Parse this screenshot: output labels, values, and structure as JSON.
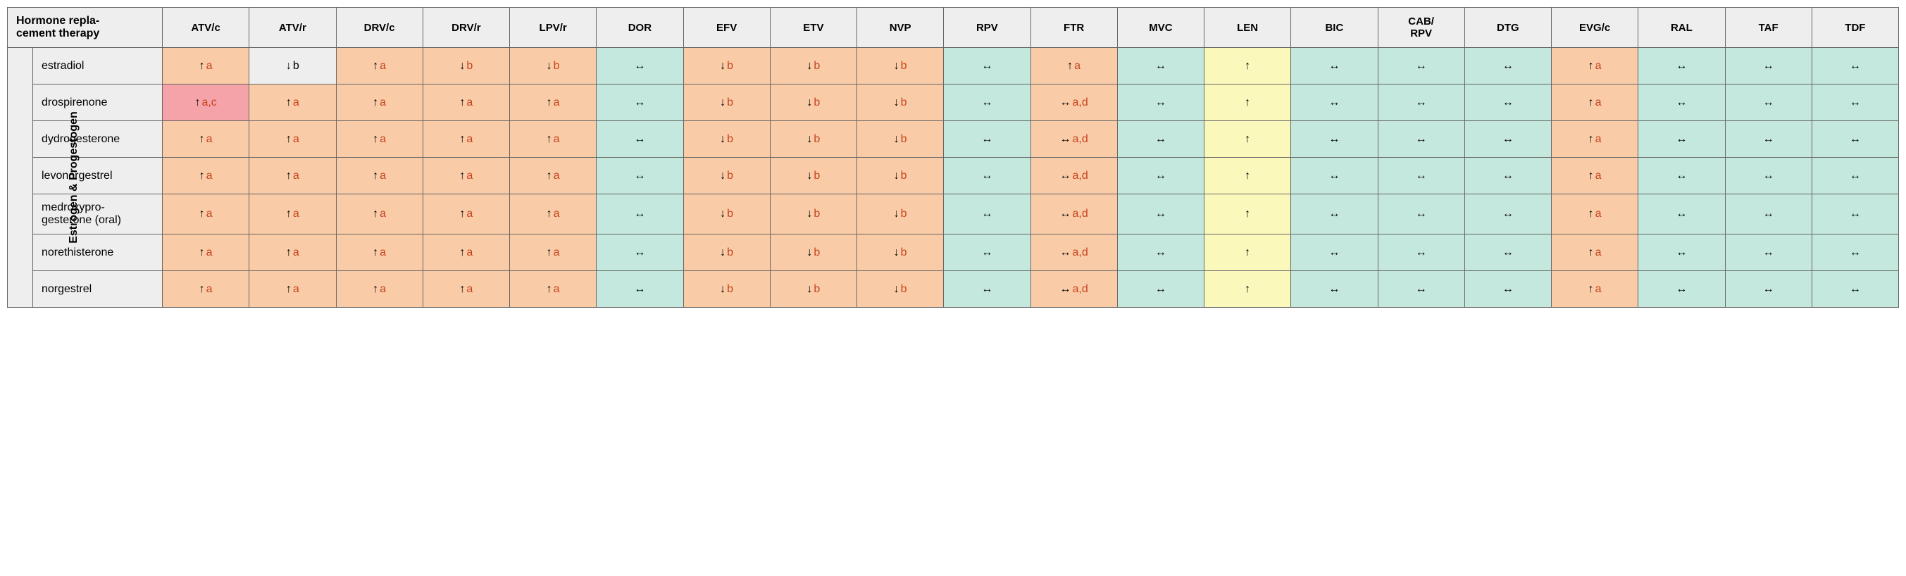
{
  "title": "Hormone repla-\ncement therapy",
  "group_label": "Estrogen & Progestogen",
  "colors": {
    "header_bg": "#eeeeee",
    "green": "#c4e8dd",
    "orange": "#f9cba6",
    "yellow": "#fbf8bb",
    "red": "#f5a3a8",
    "note_text": "#c7431f",
    "note_black": "#000000",
    "border": "#666666"
  },
  "columns": [
    "ATV/c",
    "ATV/r",
    "DRV/c",
    "DRV/r",
    "LPV/r",
    "DOR",
    "EFV",
    "ETV",
    "NVP",
    "RPV",
    "FTR",
    "MVC",
    "LEN",
    "BIC",
    "CAB/\nRPV",
    "DTG",
    "EVG/c",
    "RAL",
    "TAF",
    "TDF"
  ],
  "rows": [
    "estradiol",
    "drospirenone",
    "dydrogesterone",
    "levonorgestrel",
    "medroxypro-\ngesterone (oral)",
    "norethisterone",
    "norgestrel"
  ],
  "cells": [
    [
      {
        "bg": "orange",
        "arrow": "↑",
        "note": "a",
        "nc": "red"
      },
      {
        "bg": "header",
        "arrow": "↓",
        "note": "b",
        "nc": "black"
      },
      {
        "bg": "orange",
        "arrow": "↑",
        "note": "a",
        "nc": "red"
      },
      {
        "bg": "orange",
        "arrow": "↓",
        "note": "b",
        "nc": "red"
      },
      {
        "bg": "orange",
        "arrow": "↓",
        "note": "b",
        "nc": "red"
      },
      {
        "bg": "green",
        "arrow": "↔"
      },
      {
        "bg": "orange",
        "arrow": "↓",
        "note": "b",
        "nc": "red"
      },
      {
        "bg": "orange",
        "arrow": "↓",
        "note": "b",
        "nc": "red"
      },
      {
        "bg": "orange",
        "arrow": "↓",
        "note": "b",
        "nc": "red"
      },
      {
        "bg": "green",
        "arrow": "↔"
      },
      {
        "bg": "orange",
        "arrow": "↑",
        "note": "a",
        "nc": "red"
      },
      {
        "bg": "green",
        "arrow": "↔"
      },
      {
        "bg": "yellow",
        "arrow": "↑"
      },
      {
        "bg": "green",
        "arrow": "↔"
      },
      {
        "bg": "green",
        "arrow": "↔"
      },
      {
        "bg": "green",
        "arrow": "↔"
      },
      {
        "bg": "orange",
        "arrow": "↑",
        "note": "a",
        "nc": "red"
      },
      {
        "bg": "green",
        "arrow": "↔"
      },
      {
        "bg": "green",
        "arrow": "↔"
      },
      {
        "bg": "green",
        "arrow": "↔"
      }
    ],
    [
      {
        "bg": "red",
        "arrow": "↑",
        "note": "a,c",
        "nc": "red"
      },
      {
        "bg": "orange",
        "arrow": "↑",
        "note": "a",
        "nc": "red"
      },
      {
        "bg": "orange",
        "arrow": "↑",
        "note": "a",
        "nc": "red"
      },
      {
        "bg": "orange",
        "arrow": "↑",
        "note": "a",
        "nc": "red"
      },
      {
        "bg": "orange",
        "arrow": "↑",
        "note": "a",
        "nc": "red"
      },
      {
        "bg": "green",
        "arrow": "↔"
      },
      {
        "bg": "orange",
        "arrow": "↓",
        "note": "b",
        "nc": "red"
      },
      {
        "bg": "orange",
        "arrow": "↓",
        "note": "b",
        "nc": "red"
      },
      {
        "bg": "orange",
        "arrow": "↓",
        "note": "b",
        "nc": "red"
      },
      {
        "bg": "green",
        "arrow": "↔"
      },
      {
        "bg": "orange",
        "arrow": "↔",
        "note": "a,d",
        "nc": "red"
      },
      {
        "bg": "green",
        "arrow": "↔"
      },
      {
        "bg": "yellow",
        "arrow": "↑"
      },
      {
        "bg": "green",
        "arrow": "↔"
      },
      {
        "bg": "green",
        "arrow": "↔"
      },
      {
        "bg": "green",
        "arrow": "↔"
      },
      {
        "bg": "orange",
        "arrow": "↑",
        "note": "a",
        "nc": "red"
      },
      {
        "bg": "green",
        "arrow": "↔"
      },
      {
        "bg": "green",
        "arrow": "↔"
      },
      {
        "bg": "green",
        "arrow": "↔"
      }
    ],
    [
      {
        "bg": "orange",
        "arrow": "↑",
        "note": "a",
        "nc": "red"
      },
      {
        "bg": "orange",
        "arrow": "↑",
        "note": "a",
        "nc": "red"
      },
      {
        "bg": "orange",
        "arrow": "↑",
        "note": "a",
        "nc": "red"
      },
      {
        "bg": "orange",
        "arrow": "↑",
        "note": "a",
        "nc": "red"
      },
      {
        "bg": "orange",
        "arrow": "↑",
        "note": "a",
        "nc": "red"
      },
      {
        "bg": "green",
        "arrow": "↔"
      },
      {
        "bg": "orange",
        "arrow": "↓",
        "note": "b",
        "nc": "red"
      },
      {
        "bg": "orange",
        "arrow": "↓",
        "note": "b",
        "nc": "red"
      },
      {
        "bg": "orange",
        "arrow": "↓",
        "note": "b",
        "nc": "red"
      },
      {
        "bg": "green",
        "arrow": "↔"
      },
      {
        "bg": "orange",
        "arrow": "↔",
        "note": "a,d",
        "nc": "red"
      },
      {
        "bg": "green",
        "arrow": "↔"
      },
      {
        "bg": "yellow",
        "arrow": "↑"
      },
      {
        "bg": "green",
        "arrow": "↔"
      },
      {
        "bg": "green",
        "arrow": "↔"
      },
      {
        "bg": "green",
        "arrow": "↔"
      },
      {
        "bg": "orange",
        "arrow": "↑",
        "note": "a",
        "nc": "red"
      },
      {
        "bg": "green",
        "arrow": "↔"
      },
      {
        "bg": "green",
        "arrow": "↔"
      },
      {
        "bg": "green",
        "arrow": "↔"
      }
    ],
    [
      {
        "bg": "orange",
        "arrow": "↑",
        "note": "a",
        "nc": "red"
      },
      {
        "bg": "orange",
        "arrow": "↑",
        "note": "a",
        "nc": "red"
      },
      {
        "bg": "orange",
        "arrow": "↑",
        "note": "a",
        "nc": "red"
      },
      {
        "bg": "orange",
        "arrow": "↑",
        "note": "a",
        "nc": "red"
      },
      {
        "bg": "orange",
        "arrow": "↑",
        "note": "a",
        "nc": "red"
      },
      {
        "bg": "green",
        "arrow": "↔"
      },
      {
        "bg": "orange",
        "arrow": "↓",
        "note": "b",
        "nc": "red"
      },
      {
        "bg": "orange",
        "arrow": "↓",
        "note": "b",
        "nc": "red"
      },
      {
        "bg": "orange",
        "arrow": "↓",
        "note": "b",
        "nc": "red"
      },
      {
        "bg": "green",
        "arrow": "↔"
      },
      {
        "bg": "orange",
        "arrow": "↔",
        "note": "a,d",
        "nc": "red"
      },
      {
        "bg": "green",
        "arrow": "↔"
      },
      {
        "bg": "yellow",
        "arrow": "↑"
      },
      {
        "bg": "green",
        "arrow": "↔"
      },
      {
        "bg": "green",
        "arrow": "↔"
      },
      {
        "bg": "green",
        "arrow": "↔"
      },
      {
        "bg": "orange",
        "arrow": "↑",
        "note": "a",
        "nc": "red"
      },
      {
        "bg": "green",
        "arrow": "↔"
      },
      {
        "bg": "green",
        "arrow": "↔"
      },
      {
        "bg": "green",
        "arrow": "↔"
      }
    ],
    [
      {
        "bg": "orange",
        "arrow": "↑",
        "note": "a",
        "nc": "red"
      },
      {
        "bg": "orange",
        "arrow": "↑",
        "note": "a",
        "nc": "red"
      },
      {
        "bg": "orange",
        "arrow": "↑",
        "note": "a",
        "nc": "red"
      },
      {
        "bg": "orange",
        "arrow": "↑",
        "note": "a",
        "nc": "red"
      },
      {
        "bg": "orange",
        "arrow": "↑",
        "note": "a",
        "nc": "red"
      },
      {
        "bg": "green",
        "arrow": "↔"
      },
      {
        "bg": "orange",
        "arrow": "↓",
        "note": "b",
        "nc": "red"
      },
      {
        "bg": "orange",
        "arrow": "↓",
        "note": "b",
        "nc": "red"
      },
      {
        "bg": "orange",
        "arrow": "↓",
        "note": "b",
        "nc": "red"
      },
      {
        "bg": "green",
        "arrow": "↔"
      },
      {
        "bg": "orange",
        "arrow": "↔",
        "note": "a,d",
        "nc": "red"
      },
      {
        "bg": "green",
        "arrow": "↔"
      },
      {
        "bg": "yellow",
        "arrow": "↑"
      },
      {
        "bg": "green",
        "arrow": "↔"
      },
      {
        "bg": "green",
        "arrow": "↔"
      },
      {
        "bg": "green",
        "arrow": "↔"
      },
      {
        "bg": "orange",
        "arrow": "↑",
        "note": "a",
        "nc": "red"
      },
      {
        "bg": "green",
        "arrow": "↔"
      },
      {
        "bg": "green",
        "arrow": "↔"
      },
      {
        "bg": "green",
        "arrow": "↔"
      }
    ],
    [
      {
        "bg": "orange",
        "arrow": "↑",
        "note": "a",
        "nc": "red"
      },
      {
        "bg": "orange",
        "arrow": "↑",
        "note": "a",
        "nc": "red"
      },
      {
        "bg": "orange",
        "arrow": "↑",
        "note": "a",
        "nc": "red"
      },
      {
        "bg": "orange",
        "arrow": "↑",
        "note": "a",
        "nc": "red"
      },
      {
        "bg": "orange",
        "arrow": "↑",
        "note": "a",
        "nc": "red"
      },
      {
        "bg": "green",
        "arrow": "↔"
      },
      {
        "bg": "orange",
        "arrow": "↓",
        "note": "b",
        "nc": "red"
      },
      {
        "bg": "orange",
        "arrow": "↓",
        "note": "b",
        "nc": "red"
      },
      {
        "bg": "orange",
        "arrow": "↓",
        "note": "b",
        "nc": "red"
      },
      {
        "bg": "green",
        "arrow": "↔"
      },
      {
        "bg": "orange",
        "arrow": "↔",
        "note": "a,d",
        "nc": "red"
      },
      {
        "bg": "green",
        "arrow": "↔"
      },
      {
        "bg": "yellow",
        "arrow": "↑"
      },
      {
        "bg": "green",
        "arrow": "↔"
      },
      {
        "bg": "green",
        "arrow": "↔"
      },
      {
        "bg": "green",
        "arrow": "↔"
      },
      {
        "bg": "orange",
        "arrow": "↑",
        "note": "a",
        "nc": "red"
      },
      {
        "bg": "green",
        "arrow": "↔"
      },
      {
        "bg": "green",
        "arrow": "↔"
      },
      {
        "bg": "green",
        "arrow": "↔"
      }
    ],
    [
      {
        "bg": "orange",
        "arrow": "↑",
        "note": "a",
        "nc": "red"
      },
      {
        "bg": "orange",
        "arrow": "↑",
        "note": "a",
        "nc": "red"
      },
      {
        "bg": "orange",
        "arrow": "↑",
        "note": "a",
        "nc": "red"
      },
      {
        "bg": "orange",
        "arrow": "↑",
        "note": "a",
        "nc": "red"
      },
      {
        "bg": "orange",
        "arrow": "↑",
        "note": "a",
        "nc": "red"
      },
      {
        "bg": "green",
        "arrow": "↔"
      },
      {
        "bg": "orange",
        "arrow": "↓",
        "note": "b",
        "nc": "red"
      },
      {
        "bg": "orange",
        "arrow": "↓",
        "note": "b",
        "nc": "red"
      },
      {
        "bg": "orange",
        "arrow": "↓",
        "note": "b",
        "nc": "red"
      },
      {
        "bg": "green",
        "arrow": "↔"
      },
      {
        "bg": "orange",
        "arrow": "↔",
        "note": "a,d",
        "nc": "red"
      },
      {
        "bg": "green",
        "arrow": "↔"
      },
      {
        "bg": "yellow",
        "arrow": "↑"
      },
      {
        "bg": "green",
        "arrow": "↔"
      },
      {
        "bg": "green",
        "arrow": "↔"
      },
      {
        "bg": "green",
        "arrow": "↔"
      },
      {
        "bg": "orange",
        "arrow": "↑",
        "note": "a",
        "nc": "red"
      },
      {
        "bg": "green",
        "arrow": "↔"
      },
      {
        "bg": "green",
        "arrow": "↔"
      },
      {
        "bg": "green",
        "arrow": "↔"
      }
    ]
  ]
}
